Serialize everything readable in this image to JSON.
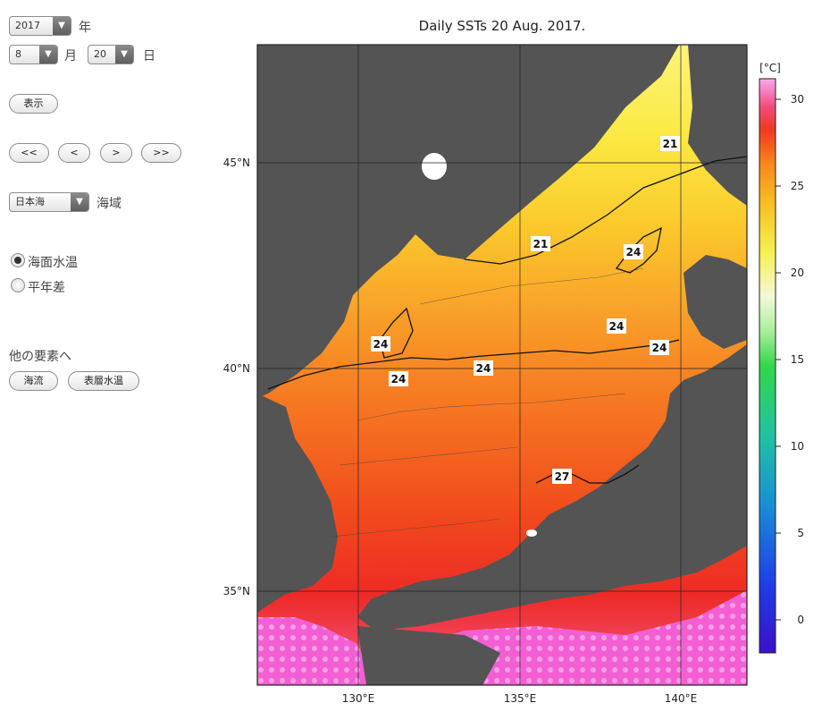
{
  "controls": {
    "year": {
      "value": "2017",
      "unit": "年"
    },
    "month": {
      "value": "8",
      "unit": "月"
    },
    "day": {
      "value": "20",
      "unit": "日"
    },
    "show_button": "表示",
    "nav_buttons": [
      "<<",
      "<",
      ">",
      ">>"
    ],
    "sea_area": {
      "value": "日本海",
      "unit": "海域"
    },
    "modes": [
      {
        "label": "海面水温",
        "selected": true
      },
      {
        "label": "平年差",
        "selected": false
      }
    ],
    "other_elements_label": "他の要素へ",
    "other_buttons": [
      "海流",
      "表層水温"
    ]
  },
  "map": {
    "title": "Daily SSTs 20 Aug. 2017.",
    "lat_ticks": [
      "45°N",
      "40°N",
      "35°N"
    ],
    "lon_ticks": [
      "130°E",
      "135°E",
      "140°E"
    ],
    "contour_labels": [
      "21",
      "21",
      "24",
      "24",
      "24",
      "24",
      "24",
      "24",
      "27"
    ],
    "land_color": "#545454"
  },
  "colorbar": {
    "unit": "[°C]",
    "ticks": [
      "30",
      "25",
      "20",
      "15",
      "10",
      "5",
      "0"
    ],
    "range": [
      -2,
      31
    ]
  }
}
